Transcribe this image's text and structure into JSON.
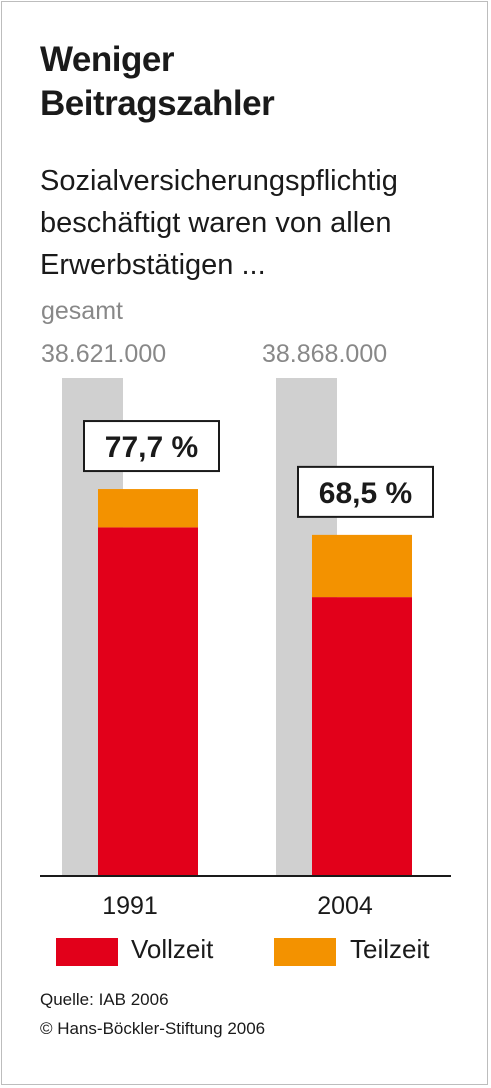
{
  "header": {
    "title_line1": "Weniger",
    "title_line2": "Beitragszahler",
    "subtitle_line1": "Sozialversicherungspflichtig",
    "subtitle_line2": "beschäftigt waren von allen",
    "subtitle_line3": "Erwerbstätigen ..."
  },
  "total_label": "gesamt",
  "colors": {
    "vollzeit": "#e2001a",
    "teilzeit": "#f39200",
    "total": "#d0d0d0",
    "axis": "#1a1a1a"
  },
  "chart_data": {
    "type": "bar",
    "categories": [
      "1991",
      "2004"
    ],
    "totals": [
      38621000,
      38868000
    ],
    "totals_labels": [
      "38.621.000",
      "38.868.000"
    ],
    "share_labels": [
      "77,7 %",
      "68,5 %"
    ],
    "shares_percent": [
      77.7,
      68.5
    ],
    "series": [
      {
        "name": "Vollzeit",
        "values": [
          70.0,
          56.0
        ]
      },
      {
        "name": "Teilzeit",
        "values": [
          7.7,
          12.5
        ]
      }
    ],
    "ylim": [
      0,
      100
    ],
    "legend": "bottom"
  },
  "legend": {
    "vollzeit": "Vollzeit",
    "teilzeit": "Teilzeit"
  },
  "footer": {
    "source": "Quelle: IAB 2006",
    "copyright": "© Hans-Böckler-Stiftung 2006"
  }
}
